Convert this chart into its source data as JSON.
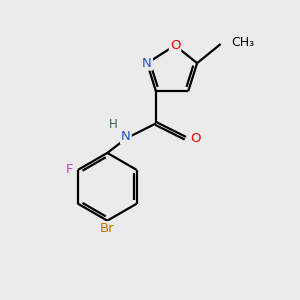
{
  "background_color": "#ebebeb",
  "bond_color": "#000000",
  "atom_colors": {
    "N": "#2255cc",
    "O": "#ff0000",
    "F": "#cc44cc",
    "Br": "#bb7700",
    "H": "#336666",
    "C": "#000000"
  },
  "figsize": [
    3.0,
    3.0
  ],
  "dpi": 100
}
